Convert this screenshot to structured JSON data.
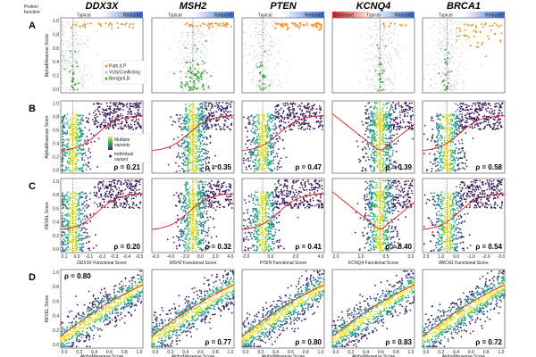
{
  "protein_function_label": "Protein function",
  "genes": [
    "DDX3X",
    "MSH2",
    "PTEN",
    "KCNQ4",
    "BRCA1"
  ],
  "bar_labels": [
    {
      "left": "Typical",
      "mid": "",
      "right": "Reduced"
    },
    {
      "left": "Typical",
      "mid": "",
      "right": "Reduced"
    },
    {
      "left": "Typical",
      "mid": "",
      "right": "Reduced"
    },
    {
      "left": "Increased",
      "mid": "Typical",
      "right": "Reduced"
    },
    {
      "left": "Typical",
      "mid": "",
      "right": "Reduced"
    }
  ],
  "colors": {
    "pathogenic": "#f58c1e",
    "vus": "#bdbdbd",
    "benign": "#3cab3c",
    "trend": "#e01b1b",
    "bar_blue": "#3a6fd8",
    "bar_red": "#e02020",
    "viridis": [
      "#3b1f5f",
      "#2d6f8e",
      "#21a585",
      "#7ad151",
      "#fde725"
    ]
  },
  "chart_data": {
    "type": "scatter",
    "rows": [
      {
        "letter": "A",
        "ylabel": "AlphaMissense Score",
        "kind": "labels"
      },
      {
        "letter": "B",
        "ylabel": "AlphaMissense Score",
        "kind": "density"
      },
      {
        "letter": "C",
        "ylabel": "REVEL Score",
        "kind": "density"
      },
      {
        "letter": "D",
        "ylabel": "REVEL Score",
        "kind": "density-am"
      }
    ],
    "yticks": [
      "0.0",
      "0.2",
      "0.4",
      "0.6",
      "0.8",
      "1.0"
    ],
    "xlabels_func": [
      "DDX3X Functional Score",
      "MSH2 Functional Score",
      "PTEN Functional Score",
      "KCNQ4 Functional Score",
      "BRCA1 Functional Score"
    ],
    "xticks_func": [
      [
        "0.1",
        "0.0",
        "-0.1",
        "-0.2",
        "-0.3",
        "-0.4",
        "-0.5"
      ],
      [
        "-6.0",
        "-4.0",
        "-2.0",
        "0.0",
        "2.0",
        "4.0"
      ],
      [
        "-2.0",
        "0.0",
        "2.0",
        "4.0"
      ],
      [
        "2.0",
        "1.0",
        "0.5",
        "0.0"
      ],
      [
        "2.0",
        "1.0",
        "0.0",
        "-1.0",
        "-2.0",
        "-3.0"
      ]
    ],
    "xlabel_am": "AlphaMissense Score",
    "xticks_am": [
      "0.0",
      "0.2",
      "0.4",
      "0.6",
      "0.8",
      "1.0"
    ],
    "rho_B": [
      "ρ = 0.21",
      "ρ = 0.35",
      "ρ = 0.47",
      "ρ = 0.39",
      "ρ = 0.58"
    ],
    "rho_C": [
      "ρ = 0.20",
      "ρ = 0.32",
      "ρ = 0.41",
      "ρ = 0.40",
      "ρ = 0.54"
    ],
    "rho_D": [
      "ρ = 0.80",
      "ρ = 0.77",
      "ρ = 0.80",
      "ρ = 0.83",
      "ρ = 0.72"
    ],
    "legend_A": [
      "Path./LP",
      "VUS/Conflicting",
      "Benign/LB"
    ],
    "legend_B": [
      "Multiple variants",
      "Individual variant"
    ]
  }
}
